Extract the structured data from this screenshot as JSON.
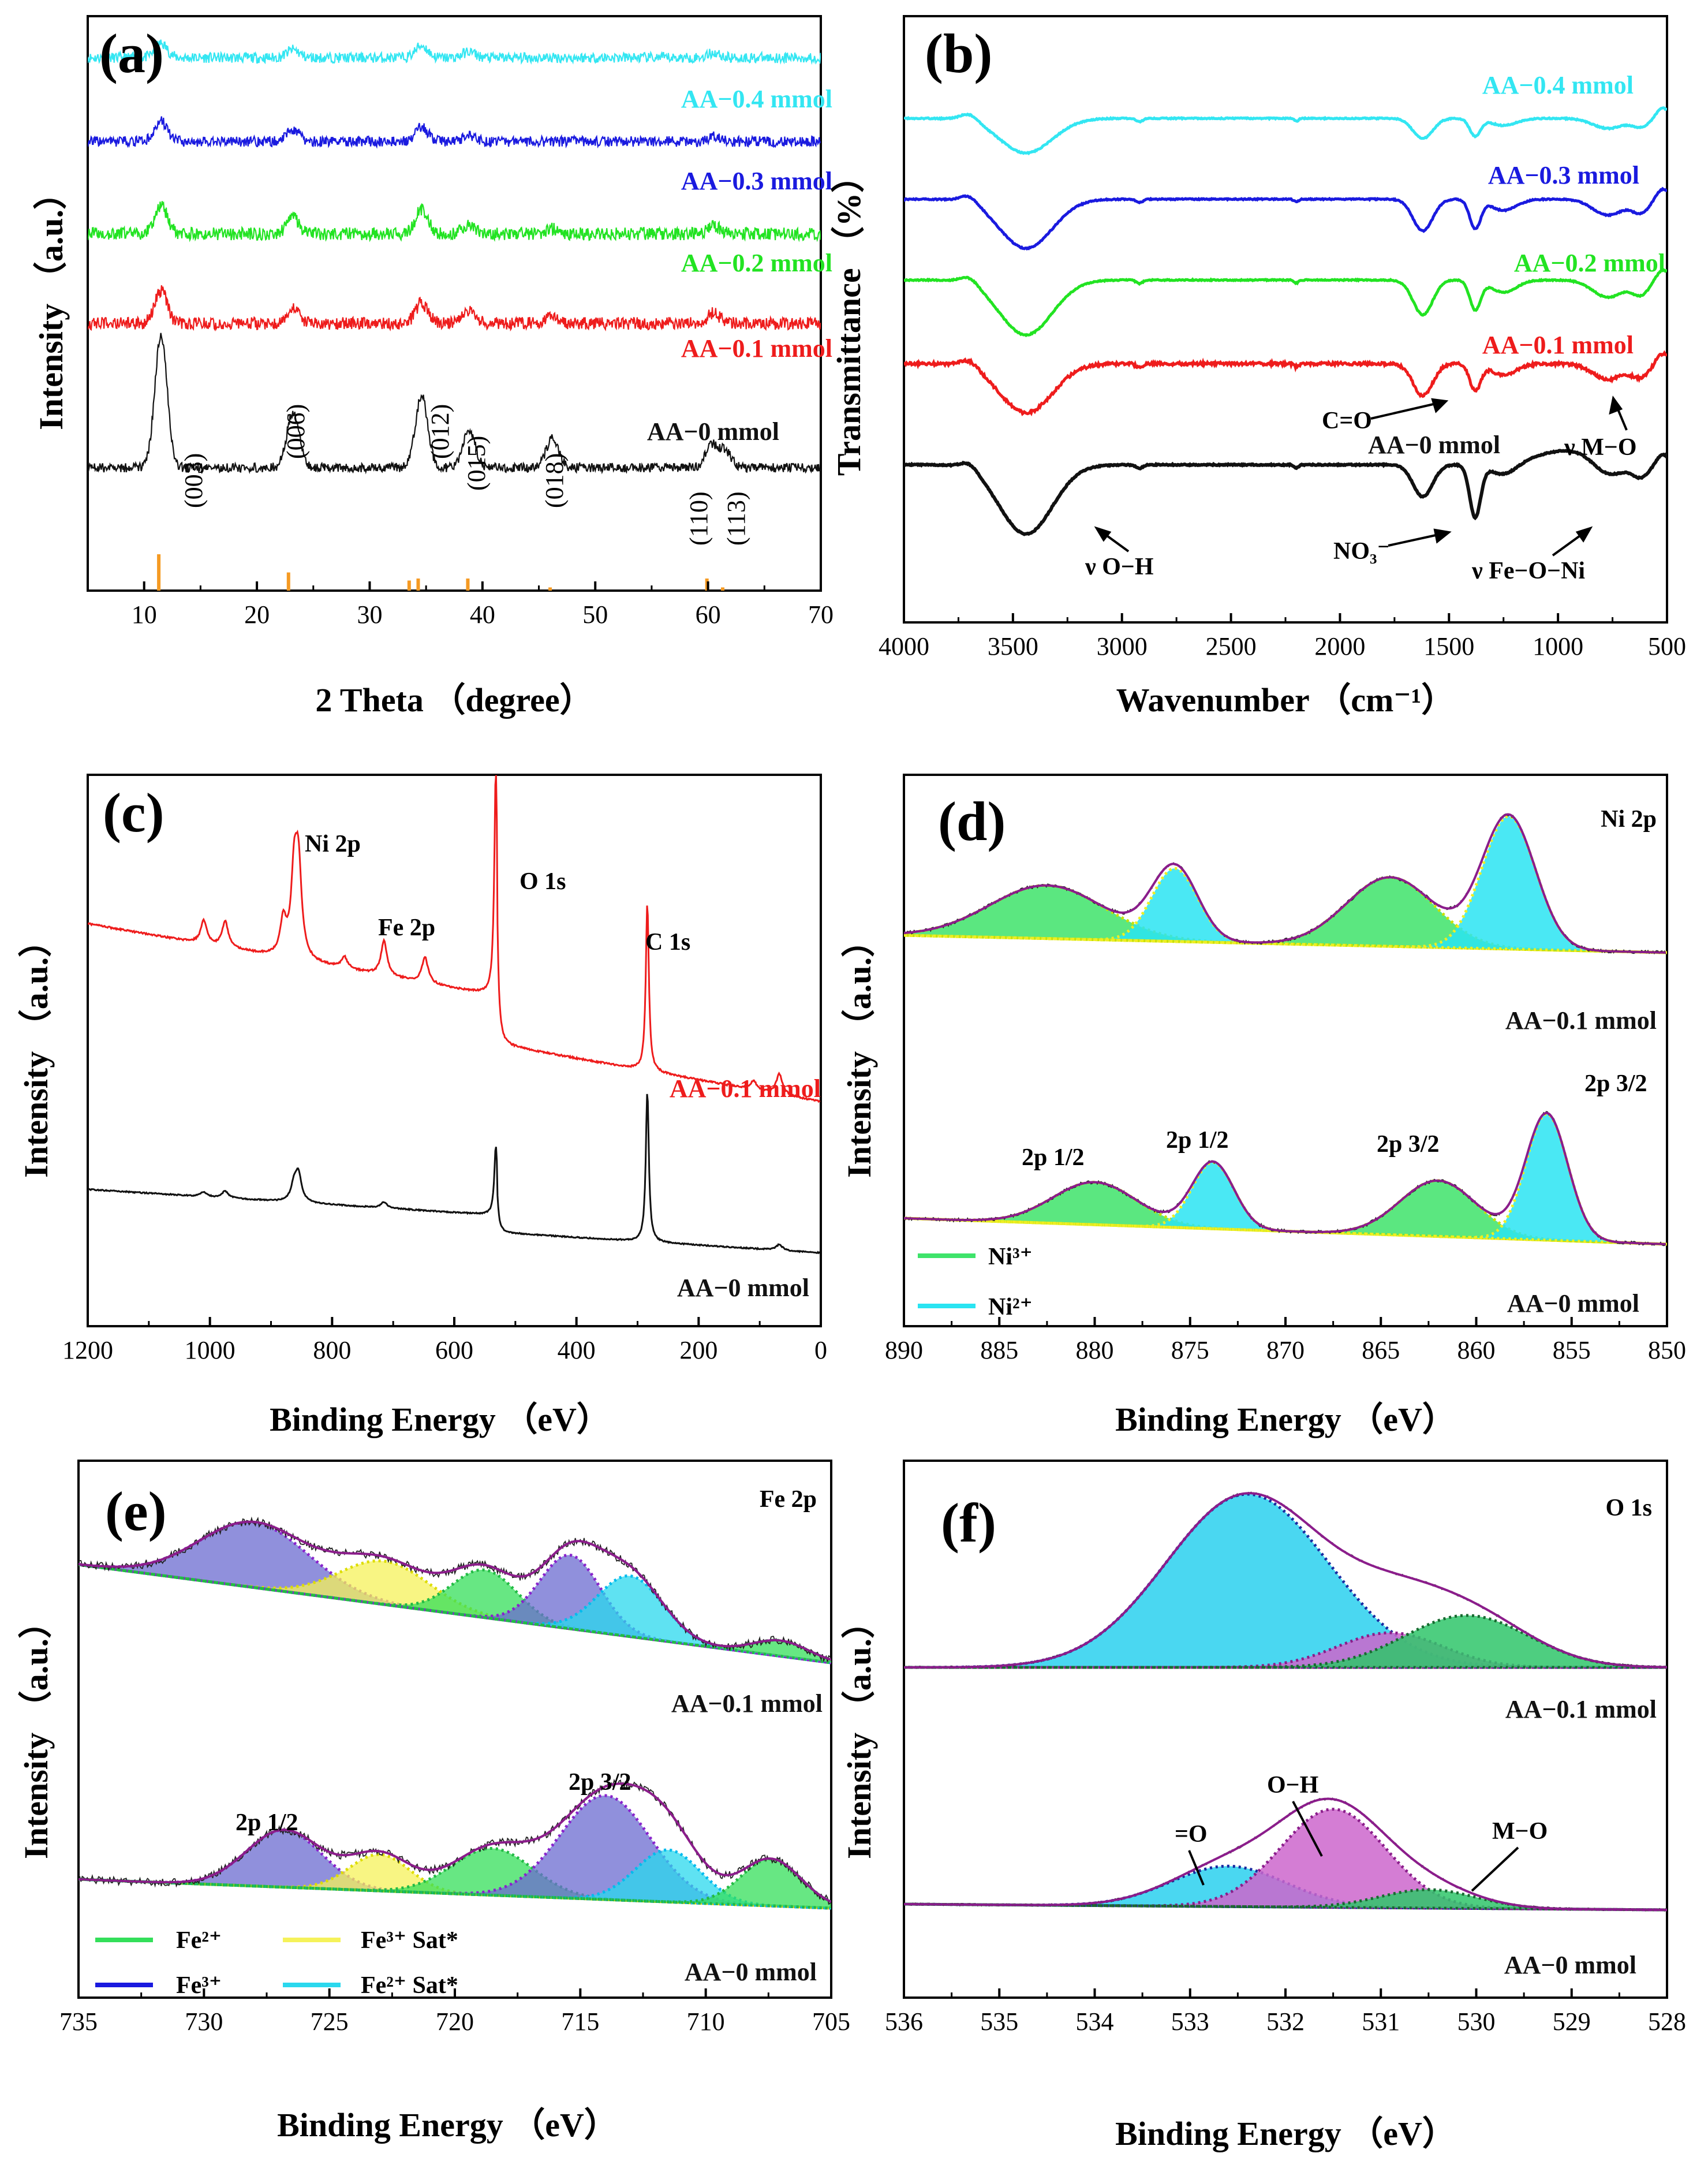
{
  "colors": {
    "cyan": "#33e6f2",
    "blue": "#1a1adf",
    "green": "#22e322",
    "red": "#ee1c1c",
    "black": "#111111",
    "orange": "#f59a23",
    "purple": "#8b1d8b",
    "ni3": "#3ee36a",
    "ni2": "#2ae4f2",
    "fe3": "#6b6bd0",
    "fe3sat": "#f5f25a",
    "fe2sat": "#2ad8ee",
    "fe2": "#34df5a",
    "oxo": "#2ad0ee",
    "ooh": "#cc66cc",
    "omo": "#2fc66a"
  },
  "chart_data": [
    {
      "id": "a",
      "type": "line",
      "panel_label": "(a)",
      "xlabel": "2 Theta （degree）",
      "ylabel": "Intensity （a.u.）",
      "xlim": [
        5,
        70
      ],
      "xticks": [
        "10",
        "20",
        "30",
        "40",
        "50",
        "60",
        "70"
      ],
      "series": [
        {
          "name": "AA-0.4 mmol",
          "label": "AA−0.4 mmol",
          "color": "#33e6f2",
          "peaks": [
            [
              11.5,
              0.35
            ],
            [
              23.2,
              0.2
            ],
            [
              34.6,
              0.3
            ],
            [
              38.8,
              0.15
            ],
            [
              60.5,
              0.12
            ]
          ]
        },
        {
          "name": "AA-0.3 mmol",
          "label": "AA−0.3 mmol",
          "color": "#1a1adf",
          "peaks": [
            [
              11.5,
              0.5
            ],
            [
              23.2,
              0.3
            ],
            [
              34.6,
              0.35
            ],
            [
              38.8,
              0.15
            ],
            [
              60.5,
              0.12
            ]
          ]
        },
        {
          "name": "AA-0.2 mmol",
          "label": "AA−0.2 mmol",
          "color": "#22e322",
          "peaks": [
            [
              11.5,
              0.7
            ],
            [
              23.2,
              0.4
            ],
            [
              34.6,
              0.6
            ],
            [
              38.8,
              0.25
            ],
            [
              46.2,
              0.12
            ],
            [
              60.5,
              0.2
            ]
          ]
        },
        {
          "name": "AA-0.1 mmol",
          "label": "AA−0.1 mmol",
          "color": "#ee1c1c",
          "peaks": [
            [
              11.5,
              0.8
            ],
            [
              23.2,
              0.4
            ],
            [
              34.6,
              0.5
            ],
            [
              38.8,
              0.3
            ],
            [
              46.2,
              0.2
            ],
            [
              60.5,
              0.25
            ]
          ]
        },
        {
          "name": "AA-0 mmol",
          "label": "AA−0 mmol",
          "color": "#111111",
          "peaks": [
            [
              11.5,
              2.4
            ],
            [
              23.2,
              1.0
            ],
            [
              34.6,
              1.3
            ],
            [
              38.8,
              0.7
            ],
            [
              46.2,
              0.55
            ],
            [
              60.3,
              0.4
            ],
            [
              61.5,
              0.3
            ]
          ]
        }
      ],
      "reference_bars": [
        [
          11.3,
          0.9
        ],
        [
          22.8,
          0.45
        ],
        [
          33.5,
          0.25
        ],
        [
          34.3,
          0.3
        ],
        [
          38.7,
          0.3
        ],
        [
          46,
          0.08
        ],
        [
          59.9,
          0.3
        ],
        [
          61.3,
          0.08
        ]
      ],
      "hkl_labels": [
        [
          "(003)",
          13.5
        ],
        [
          "(006)",
          22.7
        ],
        [
          "(012)",
          34.1
        ],
        [
          "(015)",
          38.6
        ],
        [
          "(018)",
          46.3
        ],
        [
          "(110)",
          59.3
        ],
        [
          "(113)",
          62.2
        ]
      ]
    },
    {
      "id": "b",
      "type": "line",
      "panel_label": "(b)",
      "xlabel": "Wavenumber （cm⁻¹）",
      "ylabel": "Transmittance （%）",
      "xlim": [
        4000,
        500
      ],
      "xticks": [
        "4000",
        "3500",
        "3000",
        "2500",
        "2000",
        "1500",
        "1000",
        "500"
      ],
      "series": [
        {
          "name": "AA-0.4 mmol",
          "label": "AA−0.4 mmol",
          "color": "#33e6f2"
        },
        {
          "name": "AA-0.3 mmol",
          "label": "AA−0.3 mmol",
          "color": "#1a1adf"
        },
        {
          "name": "AA-0.2 mmol",
          "label": "AA−0.2 mmol",
          "color": "#22e322"
        },
        {
          "name": "AA-0.1 mmol",
          "label": "AA−0.1 mmol",
          "color": "#ee1c1c"
        },
        {
          "name": "AA-0 mmol",
          "label": "AA−0 mmol",
          "color": "#111111"
        }
      ],
      "annotations": [
        "C=O",
        "ν M−O",
        "ν O−H",
        "NO₃⁻",
        "ν Fe−O−Ni"
      ]
    },
    {
      "id": "c",
      "type": "line",
      "panel_label": "(c)",
      "xlabel": "Binding Energy （eV）",
      "ylabel": "Intensity （a.u.）",
      "xlim": [
        1200,
        0
      ],
      "xticks": [
        "1200",
        "1000",
        "800",
        "600",
        "400",
        "200",
        "0"
      ],
      "series": [
        {
          "name": "AA-0.1 mmol",
          "label": "AA−0.1 mmol",
          "color": "#ee1c1c"
        },
        {
          "name": "AA-0 mmol",
          "label": "AA−0 mmol",
          "color": "#111111"
        }
      ],
      "peak_labels": [
        "Ni 2p",
        "Fe 2p",
        "O 1s",
        "C 1s"
      ]
    },
    {
      "id": "d",
      "type": "area",
      "panel_label": "(d)",
      "title": "Ni 2p",
      "xlabel": "Binding Energy （eV）",
      "ylabel": "Intensity （a.u.）",
      "xlim": [
        890,
        850
      ],
      "xticks": [
        "890",
        "885",
        "880",
        "875",
        "870",
        "865",
        "860",
        "855",
        "850"
      ],
      "spectra": [
        "AA−0.1 mmol",
        "AA−0 mmol"
      ],
      "peak_labels": [
        "2p 1/2",
        "2p 1/2",
        "2p 3/2",
        "2p 3/2"
      ],
      "legend": [
        "Ni³⁺",
        "Ni²⁺"
      ],
      "components_top": [
        [
          882.5,
          3.0,
          0.4,
          "Ni3+"
        ],
        [
          875.8,
          1.2,
          0.55,
          "Ni2+"
        ],
        [
          864.5,
          2.3,
          0.52,
          "Ni3+"
        ],
        [
          858.3,
          1.4,
          1.0,
          "Ni2+"
        ]
      ],
      "components_bottom": [
        [
          880.0,
          2.2,
          0.32,
          "Ni3+"
        ],
        [
          873.8,
          1.1,
          0.5,
          "Ni2+"
        ],
        [
          862.0,
          2.0,
          0.42,
          "Ni3+"
        ],
        [
          856.3,
          1.1,
          0.95,
          "Ni2+"
        ]
      ]
    },
    {
      "id": "e",
      "type": "area",
      "panel_label": "(e)",
      "title": "Fe 2p",
      "xlabel": "Binding Energy （eV）",
      "ylabel": "Intensity （a.u.）",
      "xlim": [
        735,
        705
      ],
      "xticks": [
        "735",
        "730",
        "725",
        "720",
        "715",
        "710",
        "705"
      ],
      "spectra": [
        "AA−0.1 mmol",
        "AA−0 mmol"
      ],
      "peak_labels": [
        "2p 1/2",
        "2p 3/2"
      ],
      "legend": [
        "Fe²⁺",
        "Fe³⁺",
        "Fe³⁺ Sat*",
        "Fe²⁺ Sat*"
      ],
      "components_top": [
        [
          728.0,
          2.2,
          0.75,
          "Fe3+"
        ],
        [
          722.8,
          1.8,
          0.5,
          "Fe3+ Sat"
        ],
        [
          718.8,
          1.3,
          0.55,
          "Fe2+"
        ],
        [
          715.4,
          1.2,
          0.85,
          "Fe3+"
        ],
        [
          713.0,
          1.3,
          0.7,
          "Fe2+ Sat"
        ],
        [
          707.0,
          1.1,
          0.18,
          "Fe2+"
        ]
      ],
      "components_bottom": [
        [
          726.8,
          1.5,
          0.55,
          "Fe3+"
        ],
        [
          723.0,
          1.2,
          0.35,
          "Fe3+ Sat"
        ],
        [
          718.5,
          1.6,
          0.45,
          "Fe2+"
        ],
        [
          714.0,
          1.8,
          1.0,
          "Fe3+"
        ],
        [
          711.5,
          1.3,
          0.5,
          "Fe2+ Sat"
        ],
        [
          707.4,
          1.2,
          0.45,
          "Fe2+"
        ]
      ]
    },
    {
      "id": "f",
      "type": "area",
      "panel_label": "(f)",
      "title": "O 1s",
      "xlabel": "Binding Energy （eV）",
      "ylabel": "Intensity （a.u.）",
      "xlim": [
        536,
        528
      ],
      "xticks": [
        "536",
        "535",
        "534",
        "533",
        "532",
        "531",
        "530",
        "529",
        "528"
      ],
      "spectra": [
        "AA−0.1 mmol",
        "AA−0 mmol"
      ],
      "peak_labels": [
        "=O",
        "O−H",
        "M−O"
      ],
      "components_top": [
        [
          532.4,
          0.85,
          1.0,
          "=O"
        ],
        [
          530.9,
          0.55,
          0.2,
          "O-H"
        ],
        [
          530.1,
          0.65,
          0.3,
          "M-O"
        ]
      ],
      "components_bottom": [
        [
          532.6,
          0.6,
          0.35,
          "=O"
        ],
        [
          531.5,
          0.55,
          0.85,
          "O-H"
        ],
        [
          530.5,
          0.5,
          0.16,
          "M-O"
        ]
      ]
    }
  ]
}
